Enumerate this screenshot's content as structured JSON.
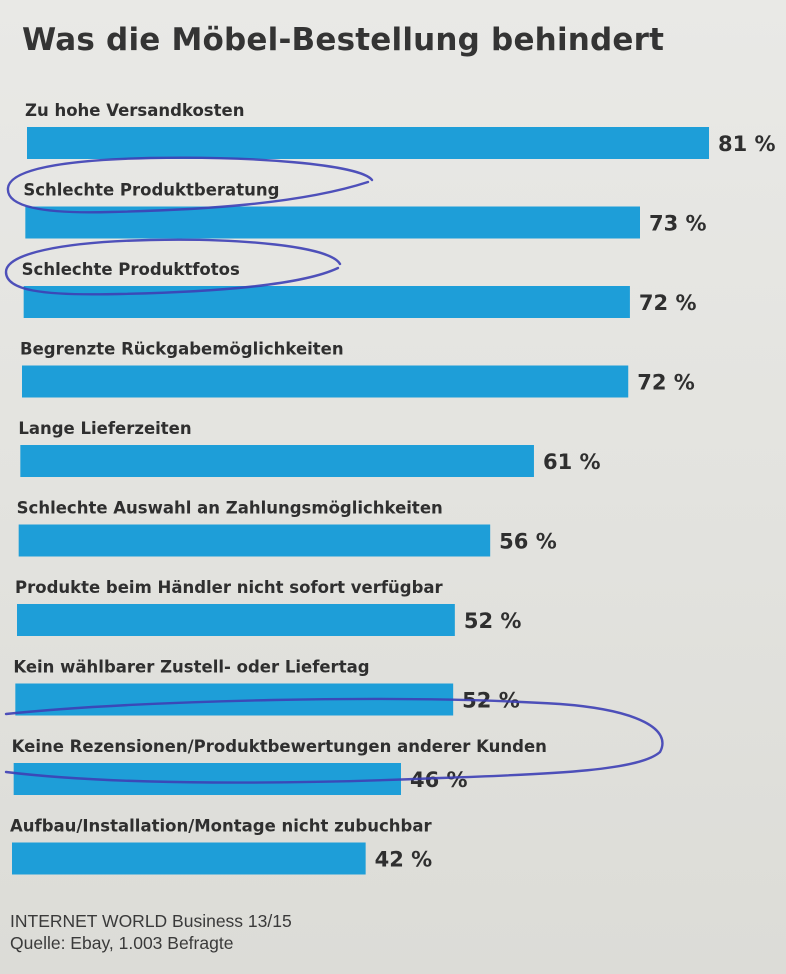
{
  "chart_data": {
    "type": "bar",
    "orientation": "horizontal",
    "title": "Was die Möbel-Bestellung behindert",
    "bar_color": "#1e9ed8",
    "unit": "%",
    "categories": [
      "Zu hohe Versandkosten",
      "Schlechte Produktberatung",
      "Schlechte Produktfotos",
      "Begrenzte Rückgabemöglichkeiten",
      "Lange Lieferzeiten",
      "Schlechte Auswahl an Zahlungsmöglichkeiten",
      "Produkte beim Händler nicht sofort verfügbar",
      "Kein wählbarer Zustell- oder Liefertag",
      "Keine Rezensionen/Produktbewertungen anderer Kunden",
      "Aufbau/Installation/Montage nicht zubuchbar"
    ],
    "values": [
      81,
      73,
      72,
      72,
      61,
      56,
      52,
      52,
      46,
      42
    ],
    "value_labels": [
      "81 %",
      "73 %",
      "72 %",
      "72 %",
      "61 %",
      "56 %",
      "52 %",
      "52 %",
      "46 %",
      "42 %"
    ],
    "circled_categories": [
      "Schlechte Produktberatung",
      "Schlechte Produktfotos",
      "Keine Rezensionen/Produktbewertungen anderer Kunden"
    ],
    "annotation_ink_color": "#3d3fb5"
  },
  "source": {
    "publication": "INTERNET WORLD Business 13/15",
    "credit": "Quelle: Ebay, 1.003 Befragte"
  }
}
